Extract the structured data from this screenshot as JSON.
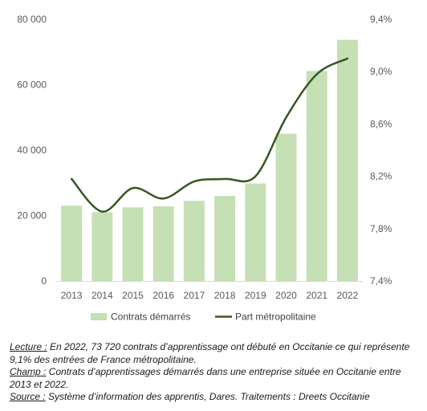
{
  "chart_data": {
    "type": "bar+line",
    "categories": [
      "2013",
      "2014",
      "2015",
      "2016",
      "2017",
      "2018",
      "2019",
      "2020",
      "2021",
      "2022"
    ],
    "series": [
      {
        "name": "Contrats démarrés",
        "kind": "bar",
        "axis": "left",
        "color": "#c5e0b4",
        "values": [
          23000,
          21000,
          22500,
          22800,
          24500,
          26000,
          29800,
          45000,
          64200,
          73720
        ]
      },
      {
        "name": "Part métropolitaine",
        "kind": "line",
        "axis": "right",
        "color": "#375623",
        "values": [
          8.18,
          7.93,
          8.11,
          8.03,
          8.16,
          8.18,
          8.2,
          8.65,
          8.98,
          9.1
        ]
      }
    ],
    "y_left": {
      "ylim": [
        0,
        80000
      ],
      "ticks": [
        0,
        20000,
        40000,
        60000,
        80000
      ],
      "tick_labels": [
        "0",
        "20 000",
        "40 000",
        "60 000",
        "80 000"
      ]
    },
    "y_right": {
      "ylim": [
        7.4,
        9.4
      ],
      "ticks": [
        7.4,
        7.8,
        8.2,
        8.6,
        9.0,
        9.4
      ],
      "tick_labels": [
        "7,4%",
        "7,8%",
        "8,2%",
        "8,6%",
        "9,0%",
        "9,4%"
      ]
    },
    "grid": false,
    "legend_position": "bottom"
  },
  "notes": {
    "lecture_label": "Lecture :",
    "lecture_text": " En 2022, 73 720 contrats d’apprentissage ont débuté en Occitanie ce qui représente 9,1% des entrées de France métropolitaine.",
    "champ_label": "Champ :",
    "champ_text": " Contrats d’apprentissages démarrés dans une entreprise située en Occitanie entre 2013 et 2022.",
    "source_label": "Source :",
    "source_text": " Système d’information des apprentis, Dares. Traitements : Dreets Occitanie"
  }
}
